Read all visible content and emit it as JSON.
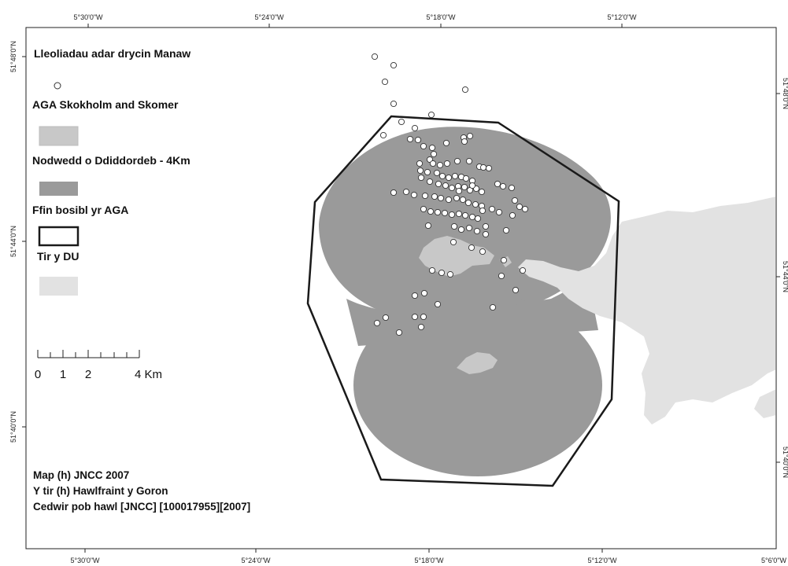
{
  "map": {
    "legend": {
      "title": "Lleoliadau adar drycin Manaw",
      "items": [
        {
          "label": "AGA Skokholm and Skomer",
          "fill": "#c8c8c8"
        },
        {
          "label": "Nodwedd o Ddiddordeb - 4Km",
          "fill": "#9a9a9a"
        },
        {
          "label": "Ffin bosibl yr AGA",
          "fill": "none"
        },
        {
          "label": "Tir y DU",
          "fill": "#e2e2e2"
        }
      ]
    },
    "scale_bar": {
      "labels": [
        "0",
        "1",
        "2",
        "4 Km"
      ]
    },
    "credits": [
      "Map (h) JNCC 2007",
      "Y tir (h) Hawlfraint y Goron",
      "Cedwir pob hawl [JNCC] [100017955][2007]"
    ],
    "graticule": {
      "top": [
        "5°30'0\"W",
        "5°24'0\"W",
        "5°18'0\"W",
        "5°12'0\"W"
      ],
      "bottom": [
        "5°30'0\"W",
        "5°24'0\"W",
        "5°18'0\"W",
        "5°12'0\"W",
        "5°6'0\"W"
      ],
      "left": [
        "51°48'0\"N",
        "51°44'0\"N",
        "51°40'0\"N"
      ],
      "right": [
        "51°48'0\"N",
        "51°44'0\"N",
        "51°40'0\"N"
      ]
    },
    "colors": {
      "interest_feature": "#9a9a9a",
      "sac_land": "#c8c8c8",
      "uk_land": "#e2e2e2",
      "boundary": "#1a1a1a",
      "points": "#ffffff"
    }
  }
}
